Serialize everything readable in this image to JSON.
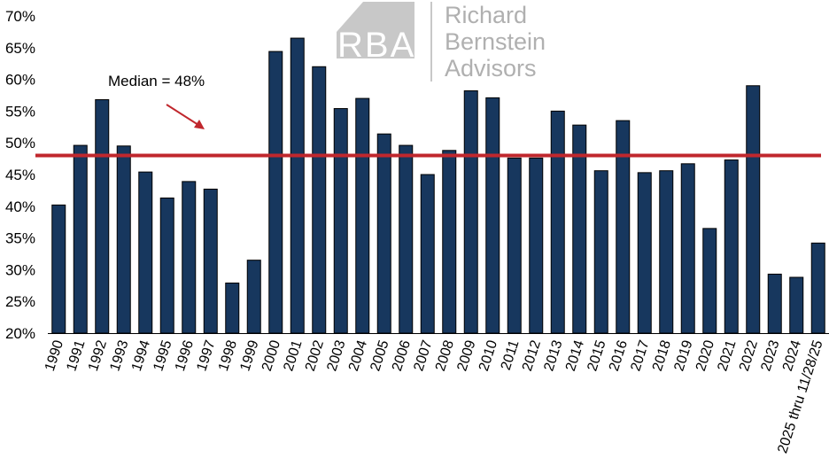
{
  "chart_data": {
    "type": "bar",
    "categories": [
      "1990",
      "1991",
      "1992",
      "1993",
      "1994",
      "1995",
      "1996",
      "1997",
      "1998",
      "1999",
      "2000",
      "2001",
      "2002",
      "2003",
      "2004",
      "2005",
      "2006",
      "2007",
      "2008",
      "2009",
      "2010",
      "2011",
      "2012",
      "2013",
      "2014",
      "2015",
      "2016",
      "2017",
      "2018",
      "2019",
      "2020",
      "2021",
      "2022",
      "2023",
      "2024",
      "2025 thru  11/28/25"
    ],
    "values": [
      40.2,
      49.6,
      56.8,
      49.5,
      45.4,
      41.3,
      43.9,
      42.7,
      27.9,
      31.5,
      64.4,
      66.5,
      62.0,
      55.4,
      57.0,
      51.4,
      49.6,
      45.0,
      48.8,
      58.2,
      57.1,
      47.6,
      47.6,
      55.0,
      52.8,
      45.6,
      53.5,
      45.3,
      45.6,
      46.7,
      36.5,
      47.3,
      59.0,
      29.3,
      28.8,
      34.2
    ],
    "ylim": [
      20,
      70
    ],
    "yticks": [
      "20%",
      "25%",
      "30%",
      "35%",
      "40%",
      "45%",
      "50%",
      "55%",
      "60%",
      "65%",
      "70%"
    ],
    "ytick_values": [
      20,
      25,
      30,
      35,
      40,
      45,
      50,
      55,
      60,
      65,
      70
    ],
    "median": 48,
    "median_label": "Median = 48%",
    "colors": {
      "bar": "#17375e",
      "median_line": "#c0272d",
      "arrow": "#c0272d"
    },
    "grid": false
  },
  "logo": {
    "mark": "RBA",
    "line1": "Richard",
    "line2": "Bernstein",
    "line3": "Advisors"
  }
}
